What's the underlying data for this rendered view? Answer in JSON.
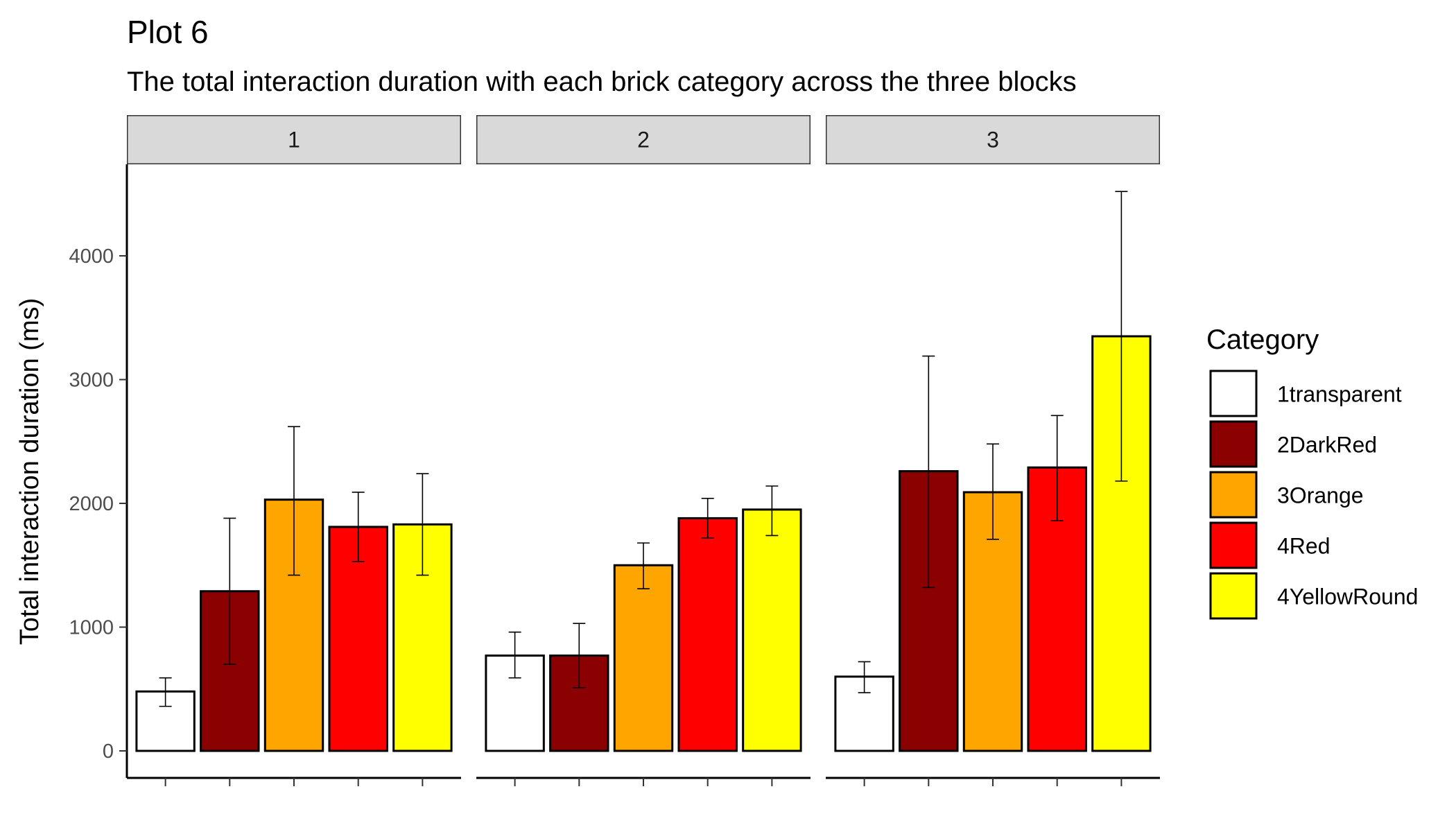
{
  "chart_data": {
    "type": "bar",
    "title": "Plot 6",
    "subtitle": "The total interaction duration with each brick category across the three blocks",
    "ylabel": "Total interaction duration (ms)",
    "xlabel": "",
    "ylim": [
      0,
      4650
    ],
    "yticks": [
      0,
      1000,
      2000,
      3000,
      4000
    ],
    "grid": false,
    "legend_position": "right",
    "legend_title": "Category",
    "categories": [
      "1transparent",
      "2DarkRed",
      "3Orange",
      "4Red",
      "4YellowRound"
    ],
    "colors": [
      "#FFFFFF",
      "#8B0000",
      "#FFA500",
      "#FF0000",
      "#FFFF00"
    ],
    "facets": [
      {
        "label": "1",
        "values": [
          480,
          1290,
          2030,
          1810,
          1830
        ],
        "error_low": [
          360,
          700,
          1420,
          1530,
          1420
        ],
        "error_high": [
          590,
          1880,
          2620,
          2090,
          2240
        ]
      },
      {
        "label": "2",
        "values": [
          770,
          770,
          1500,
          1880,
          1950
        ],
        "error_low": [
          590,
          510,
          1310,
          1720,
          1740
        ],
        "error_high": [
          960,
          1030,
          1680,
          2040,
          2140
        ]
      },
      {
        "label": "3",
        "values": [
          600,
          2260,
          2090,
          2290,
          3350
        ],
        "error_low": [
          470,
          1320,
          1710,
          1860,
          2180
        ],
        "error_high": [
          720,
          3190,
          2480,
          2710,
          4520
        ]
      }
    ]
  }
}
